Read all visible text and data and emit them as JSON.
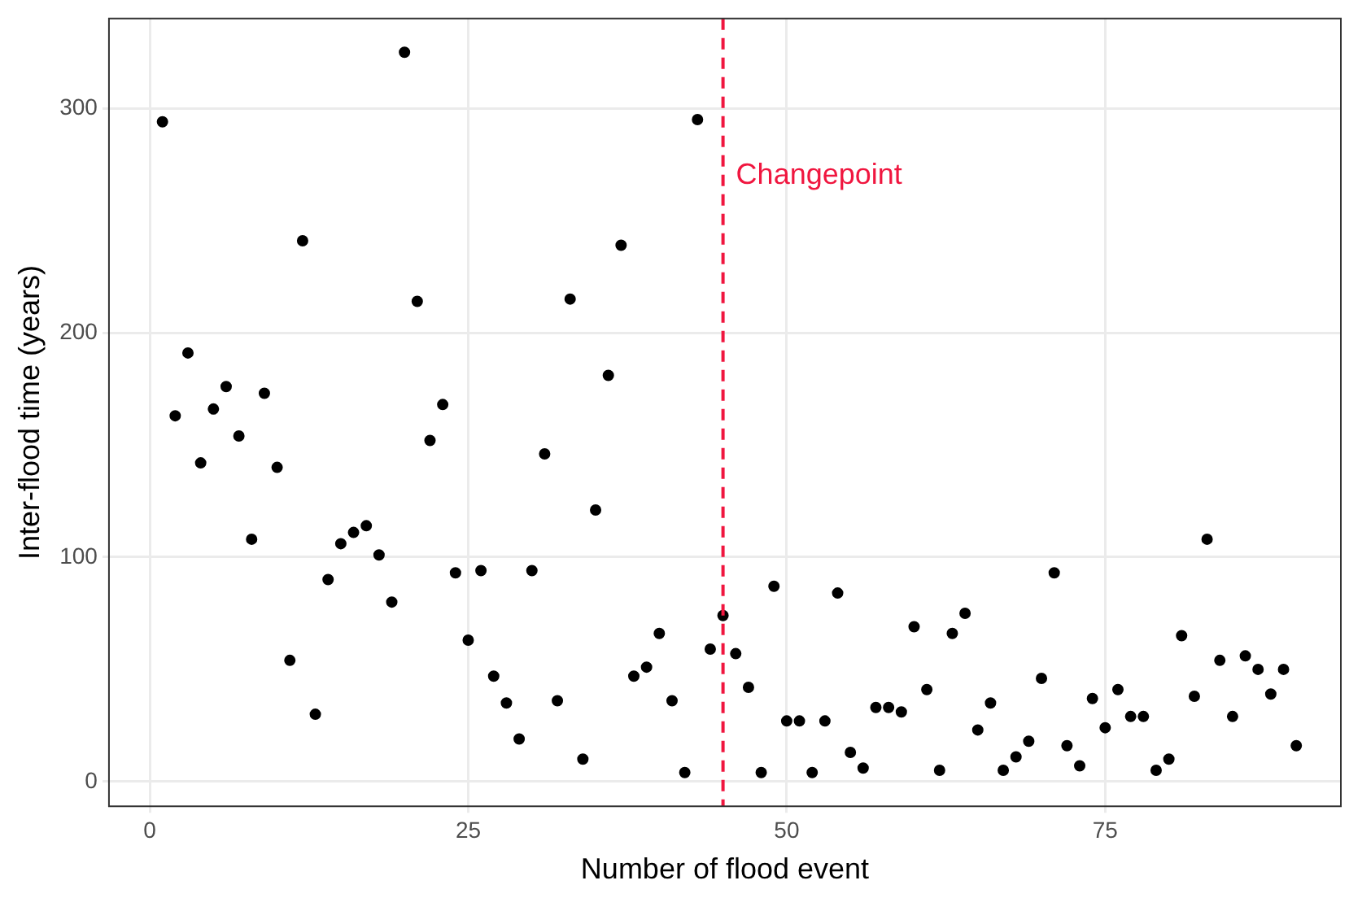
{
  "chart_data": {
    "type": "scatter",
    "xlabel": "Number of flood event",
    "ylabel": "Inter-flood time (years)",
    "x": [
      1,
      2,
      3,
      4,
      5,
      6,
      7,
      8,
      9,
      10,
      11,
      12,
      13,
      14,
      15,
      16,
      17,
      18,
      19,
      20,
      21,
      22,
      23,
      24,
      25,
      26,
      27,
      28,
      29,
      30,
      31,
      32,
      33,
      34,
      35,
      36,
      37,
      38,
      39,
      40,
      41,
      42,
      43,
      44,
      45,
      46,
      47,
      48,
      49,
      50,
      51,
      52,
      53,
      54,
      55,
      56,
      57,
      58,
      59,
      60,
      61,
      62,
      63,
      64,
      65,
      66,
      67,
      68,
      69,
      70,
      71,
      72,
      73,
      74,
      75,
      76,
      77,
      78,
      79,
      80,
      81,
      82,
      83,
      84,
      85,
      86,
      87,
      88,
      89,
      90
    ],
    "series": [
      {
        "color": "#000000",
        "values": [
          294,
          163,
          191,
          142,
          166,
          176,
          154,
          108,
          173,
          140,
          54,
          241,
          30,
          90,
          106,
          111,
          114,
          101,
          80,
          325,
          214,
          152,
          168,
          93,
          63,
          94,
          47,
          35,
          19,
          94,
          146,
          36,
          215,
          10,
          121,
          181,
          239,
          47,
          51,
          66,
          36,
          4,
          295,
          59,
          74,
          57,
          42,
          4,
          87,
          27,
          27,
          4,
          27,
          84,
          13,
          6,
          33,
          33,
          31,
          69,
          41,
          5,
          66,
          75,
          23,
          35,
          5,
          11,
          18,
          46,
          93,
          16,
          7,
          37,
          24,
          41,
          29,
          29,
          5,
          10,
          65,
          38,
          108,
          54,
          29,
          56,
          50,
          39,
          50,
          16
        ]
      }
    ],
    "xlim": [
      -3.2,
      93.5
    ],
    "ylim": [
      -11,
      340
    ],
    "xticks": [
      0,
      25,
      50,
      75
    ],
    "yticks": [
      0,
      100,
      200,
      300
    ],
    "grid": true,
    "marker": "circle",
    "legend": false,
    "ref_lines": [
      {
        "axis": "x",
        "value": 45,
        "label": "Changepoint",
        "color": "#f0163f",
        "line_style": "dashed"
      }
    ]
  }
}
